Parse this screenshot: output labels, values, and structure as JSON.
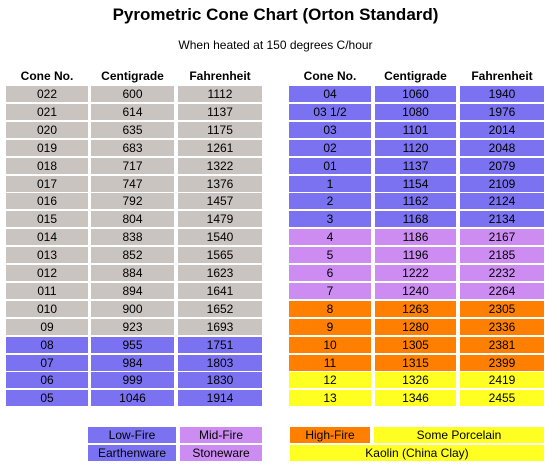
{
  "header": {
    "title": "Pyrometric Cone Chart (Orton Standard)",
    "subtitle": "When heated at 150 degrees C/hour"
  },
  "tables": [
    {
      "columns": [
        "Cone No.",
        "Centigrade",
        "Fahrenheit"
      ],
      "rows": [
        {
          "cells": [
            "022",
            600,
            1112
          ],
          "color": "#c9c4c0"
        },
        {
          "cells": [
            "021",
            614,
            1137
          ],
          "color": "#c9c4c0"
        },
        {
          "cells": [
            "020",
            635,
            1175
          ],
          "color": "#c9c4c0"
        },
        {
          "cells": [
            "019",
            683,
            1261
          ],
          "color": "#c9c4c0"
        },
        {
          "cells": [
            "018",
            717,
            1322
          ],
          "color": "#c9c4c0"
        },
        {
          "cells": [
            "017",
            747,
            1376
          ],
          "color": "#c9c4c0"
        },
        {
          "cells": [
            "016",
            792,
            1457
          ],
          "color": "#c9c4c0"
        },
        {
          "cells": [
            "015",
            804,
            1479
          ],
          "color": "#c9c4c0"
        },
        {
          "cells": [
            "014",
            838,
            1540
          ],
          "color": "#c9c4c0"
        },
        {
          "cells": [
            "013",
            852,
            1565
          ],
          "color": "#c9c4c0"
        },
        {
          "cells": [
            "012",
            884,
            1623
          ],
          "color": "#c9c4c0"
        },
        {
          "cells": [
            "011",
            894,
            1641
          ],
          "color": "#c9c4c0"
        },
        {
          "cells": [
            "010",
            900,
            1652
          ],
          "color": "#c9c4c0"
        },
        {
          "cells": [
            "09",
            923,
            1693
          ],
          "color": "#c9c4c0"
        },
        {
          "cells": [
            "08",
            955,
            1751
          ],
          "color": "#7b72f2"
        },
        {
          "cells": [
            "07",
            984,
            1803
          ],
          "color": "#7b72f2"
        },
        {
          "cells": [
            "06",
            999,
            1830
          ],
          "color": "#7b72f2"
        },
        {
          "cells": [
            "05",
            1046,
            1914
          ],
          "color": "#7b72f2"
        }
      ]
    },
    {
      "columns": [
        "Cone No.",
        "Centigrade",
        "Fahrenheit"
      ],
      "rows": [
        {
          "cells": [
            "04",
            1060,
            1940
          ],
          "color": "#7b72f2"
        },
        {
          "cells": [
            "03 1/2",
            1080,
            1976
          ],
          "color": "#7b72f2"
        },
        {
          "cells": [
            "03",
            1101,
            2014
          ],
          "color": "#7b72f2"
        },
        {
          "cells": [
            "02",
            1120,
            2048
          ],
          "color": "#7b72f2"
        },
        {
          "cells": [
            "01",
            1137,
            2079
          ],
          "color": "#7b72f2"
        },
        {
          "cells": [
            "1",
            1154,
            2109
          ],
          "color": "#7b72f2"
        },
        {
          "cells": [
            "2",
            1162,
            2124
          ],
          "color": "#7b72f2"
        },
        {
          "cells": [
            "3",
            1168,
            2134
          ],
          "color": "#7b72f2"
        },
        {
          "cells": [
            "4",
            1186,
            2167
          ],
          "color": "#cc8cf2"
        },
        {
          "cells": [
            "5",
            1196,
            2185
          ],
          "color": "#cc8cf2"
        },
        {
          "cells": [
            "6",
            1222,
            2232
          ],
          "color": "#cc8cf2"
        },
        {
          "cells": [
            "7",
            1240,
            2264
          ],
          "color": "#cc8cf2"
        },
        {
          "cells": [
            "8",
            1263,
            2305
          ],
          "color": "#ff8000"
        },
        {
          "cells": [
            "9",
            1280,
            2336
          ],
          "color": "#ff8000"
        },
        {
          "cells": [
            "10",
            1305,
            2381
          ],
          "color": "#ff8000"
        },
        {
          "cells": [
            "11",
            1315,
            2399
          ],
          "color": "#ff8000"
        },
        {
          "cells": [
            "12",
            1326,
            2419
          ],
          "color": "#ffff22"
        },
        {
          "cells": [
            "13",
            1346,
            2455
          ],
          "color": "#ffff22"
        }
      ]
    }
  ],
  "legend": [
    {
      "label": "Low-Fire",
      "color": "#7b72f2"
    },
    {
      "label": "Mid-Fire",
      "color": "#cc8cf2"
    },
    {
      "label": "Earthenware",
      "color": "#7b72f2"
    },
    {
      "label": "Stoneware",
      "color": "#cc8cf2"
    },
    {
      "label": "High-Fire",
      "color": "#ff8000"
    },
    {
      "label": "Some Porcelain",
      "color": "#ffff22"
    },
    {
      "label": "Kaolin (China Clay)",
      "color": "#ffff22"
    }
  ]
}
